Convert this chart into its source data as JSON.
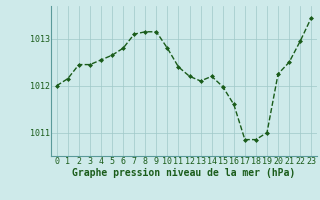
{
  "x": [
    0,
    1,
    2,
    3,
    4,
    5,
    6,
    7,
    8,
    9,
    10,
    11,
    12,
    13,
    14,
    15,
    16,
    17,
    18,
    19,
    20,
    21,
    22,
    23
  ],
  "y": [
    1012.0,
    1012.15,
    1012.45,
    1012.45,
    1012.55,
    1012.65,
    1012.8,
    1013.1,
    1013.15,
    1013.15,
    1012.8,
    1012.4,
    1012.2,
    1012.1,
    1012.2,
    1011.98,
    1011.6,
    1010.85,
    1010.85,
    1011.0,
    1012.25,
    1012.5,
    1012.95,
    1013.45
  ],
  "line_color": "#1a5c1a",
  "marker": "D",
  "marker_size": 2.0,
  "bg_color": "#ceeaea",
  "grid_color": "#a0c8c8",
  "axis_label_color": "#1a5c1a",
  "xlabel": "Graphe pression niveau de la mer (hPa)",
  "ylim": [
    1010.5,
    1013.7
  ],
  "yticks": [
    1011,
    1012,
    1013
  ],
  "xticks": [
    0,
    1,
    2,
    3,
    4,
    5,
    6,
    7,
    8,
    9,
    10,
    11,
    12,
    13,
    14,
    15,
    16,
    17,
    18,
    19,
    20,
    21,
    22,
    23
  ],
  "tick_label_color": "#1a5c1a",
  "line_width": 1.0,
  "xlabel_fontsize": 7.0,
  "tick_fontsize": 6.0,
  "grid_linewidth": 0.5,
  "bottom_spine_color": "#5a9a9a",
  "left_spine_color": "#5a9a9a"
}
